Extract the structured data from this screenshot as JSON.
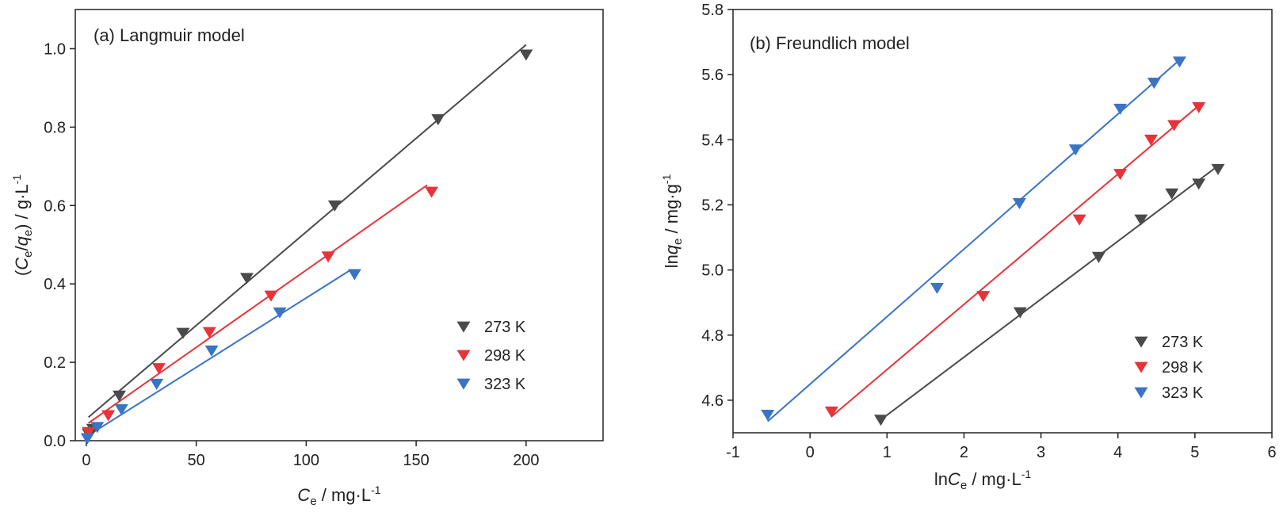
{
  "colors": {
    "273 K": "#4a4a4a",
    "298 K": "#e8333a",
    "323 K": "#3a74c4"
  },
  "chart_data": [
    {
      "type": "scatter",
      "title": "(a) Langmuir model",
      "xlabel": {
        "main": "C",
        "sub": "e",
        "unit": " / mg·L",
        "sup": "-1"
      },
      "ylabel": {
        "pre": "(",
        "main": "C",
        "sub1": "e",
        "slash": "/",
        "q": "q",
        "sub2": "e",
        "post": ") / g·L",
        "sup": "-1"
      },
      "xlim": [
        -5,
        235
      ],
      "ylim": [
        0,
        1.1
      ],
      "xticks": [
        0,
        50,
        100,
        150,
        200
      ],
      "xtick_labels": [
        "0",
        "50",
        "100",
        "150",
        "200"
      ],
      "yticks": [
        0,
        0.2,
        0.4,
        0.6,
        0.8,
        1.0
      ],
      "ytick_labels": [
        "0.0",
        "0.2",
        "0.4",
        "0.6",
        "0.8",
        "1.0"
      ],
      "legend_position": "bottom-right",
      "series": [
        {
          "name": "273 K",
          "x": [
            1,
            3,
            15,
            44,
            73,
            113,
            160,
            200
          ],
          "y": [
            0.018,
            0.03,
            0.115,
            0.275,
            0.415,
            0.6,
            0.82,
            0.985
          ],
          "fit": [
            [
              1,
              0.06
            ],
            [
              200,
              1.01
            ]
          ]
        },
        {
          "name": "298 K",
          "x": [
            1,
            10,
            33,
            56,
            84,
            110,
            157
          ],
          "y": [
            0.022,
            0.065,
            0.185,
            0.277,
            0.37,
            0.47,
            0.635
          ],
          "fit": [
            [
              1,
              0.045
            ],
            [
              155,
              0.652
            ]
          ]
        },
        {
          "name": "323 K",
          "x": [
            0.5,
            5,
            16,
            32,
            57,
            88,
            122
          ],
          "y": [
            0.006,
            0.035,
            0.08,
            0.145,
            0.23,
            0.327,
            0.425
          ],
          "fit": [
            [
              0.5,
              0.012
            ],
            [
              120,
              0.435
            ]
          ]
        }
      ]
    },
    {
      "type": "scatter",
      "title": "(b) Freundlich model",
      "xlabel": {
        "pre": "ln",
        "main": "C",
        "sub": "e",
        "unit": " / mg·L",
        "sup": "-1"
      },
      "ylabel": {
        "pre": "ln",
        "main": "q",
        "sub": "e",
        "unit": " / mg·g",
        "sup": "-1"
      },
      "xlim": [
        -1,
        6
      ],
      "ylim": [
        4.5,
        5.8
      ],
      "xticks": [
        -1,
        0,
        1,
        2,
        3,
        4,
        5,
        6
      ],
      "xtick_labels": [
        "-1",
        "0",
        "1",
        "2",
        "3",
        "4",
        "5",
        "6"
      ],
      "yticks": [
        4.6,
        4.8,
        5.0,
        5.2,
        5.4,
        5.6,
        5.8
      ],
      "ytick_labels": [
        "4.6",
        "4.8",
        "5.0",
        "5.2",
        "5.4",
        "5.6",
        "5.8"
      ],
      "legend_position": "bottom-right",
      "series": [
        {
          "name": "273 K",
          "x": [
            0.92,
            2.73,
            3.75,
            4.3,
            4.7,
            5.05,
            5.3
          ],
          "y": [
            4.54,
            4.87,
            5.04,
            5.155,
            5.235,
            5.265,
            5.31
          ],
          "fit": [
            [
              0.92,
              4.54
            ],
            [
              5.3,
              5.32
            ]
          ]
        },
        {
          "name": "298 K",
          "x": [
            0.28,
            2.25,
            3.5,
            4.03,
            4.43,
            4.73,
            5.05
          ],
          "y": [
            4.565,
            4.92,
            5.155,
            5.295,
            5.4,
            5.445,
            5.5
          ],
          "fit": [
            [
              0.28,
              4.55
            ],
            [
              5.05,
              5.505
            ]
          ]
        },
        {
          "name": "323 K",
          "x": [
            -0.55,
            1.65,
            2.72,
            3.45,
            4.03,
            4.47,
            4.8
          ],
          "y": [
            4.555,
            4.945,
            5.205,
            5.37,
            5.495,
            5.575,
            5.64
          ],
          "fit": [
            [
              -0.55,
              4.535
            ],
            [
              4.8,
              5.645
            ]
          ]
        }
      ]
    }
  ]
}
